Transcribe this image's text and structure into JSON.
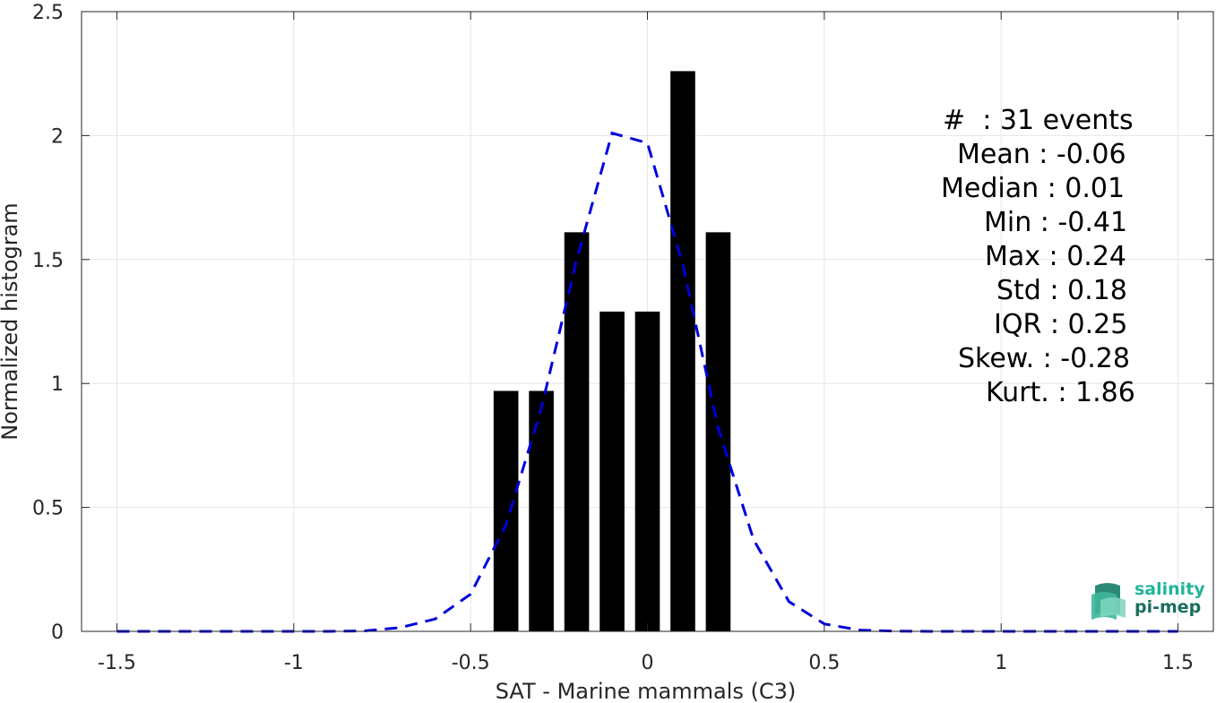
{
  "chart_data": {
    "type": "bar",
    "xlabel": "SAT - Marine mammals (C3)",
    "ylabel": "Normalized histogram",
    "xlim": [
      -1.6,
      1.6
    ],
    "ylim": [
      0,
      2.5
    ],
    "xticks": [
      -1.5,
      -1,
      -0.5,
      0,
      0.5,
      1,
      1.5
    ],
    "xtick_labels": [
      "-1.5",
      "-1",
      "-0.5",
      "0",
      "0.5",
      "1",
      "1.5"
    ],
    "yticks": [
      0,
      0.5,
      1,
      1.5,
      2,
      2.5
    ],
    "ytick_labels": [
      "0",
      "0.5",
      "1",
      "1.5",
      "2",
      "2.5"
    ],
    "grid": true,
    "bars": {
      "centers": [
        -0.4,
        -0.3,
        -0.2,
        -0.1,
        0.0,
        0.1,
        0.2
      ],
      "width": 0.07,
      "values": [
        0.97,
        0.97,
        1.61,
        1.29,
        1.29,
        2.26,
        1.61
      ],
      "color": "#000000"
    },
    "fit_curve": {
      "style": "dashed",
      "color": "#0000dd",
      "x": [
        -1.5,
        -1.4,
        -1.3,
        -1.2,
        -1.1,
        -1.0,
        -0.9,
        -0.8,
        -0.7,
        -0.6,
        -0.5,
        -0.4,
        -0.3,
        -0.2,
        -0.1,
        0.0,
        0.1,
        0.2,
        0.3,
        0.4,
        0.5,
        0.6,
        0.7,
        0.8,
        0.9,
        1.0,
        1.1,
        1.2,
        1.3,
        1.4,
        1.5
      ],
      "y": [
        0,
        0,
        0,
        0,
        0,
        0,
        0,
        0.002,
        0.015,
        0.05,
        0.15,
        0.43,
        0.9,
        1.5,
        2.01,
        1.97,
        1.48,
        0.82,
        0.37,
        0.12,
        0.03,
        0.005,
        0.001,
        0,
        0,
        0,
        0,
        0,
        0,
        0,
        0
      ]
    },
    "stats_lines": [
      "#  : 31 events",
      "Mean : -0.06",
      "Median : 0.01",
      "Min : -0.41",
      "Max : 0.24",
      "Std : 0.18",
      "IQR : 0.25",
      "Skew. : -0.28",
      "Kurt. : 1.86"
    ]
  },
  "logo": {
    "line1": "salinity",
    "line2": "pi-mep",
    "color1": "#1fb59a",
    "color2": "#1a6e5e"
  }
}
